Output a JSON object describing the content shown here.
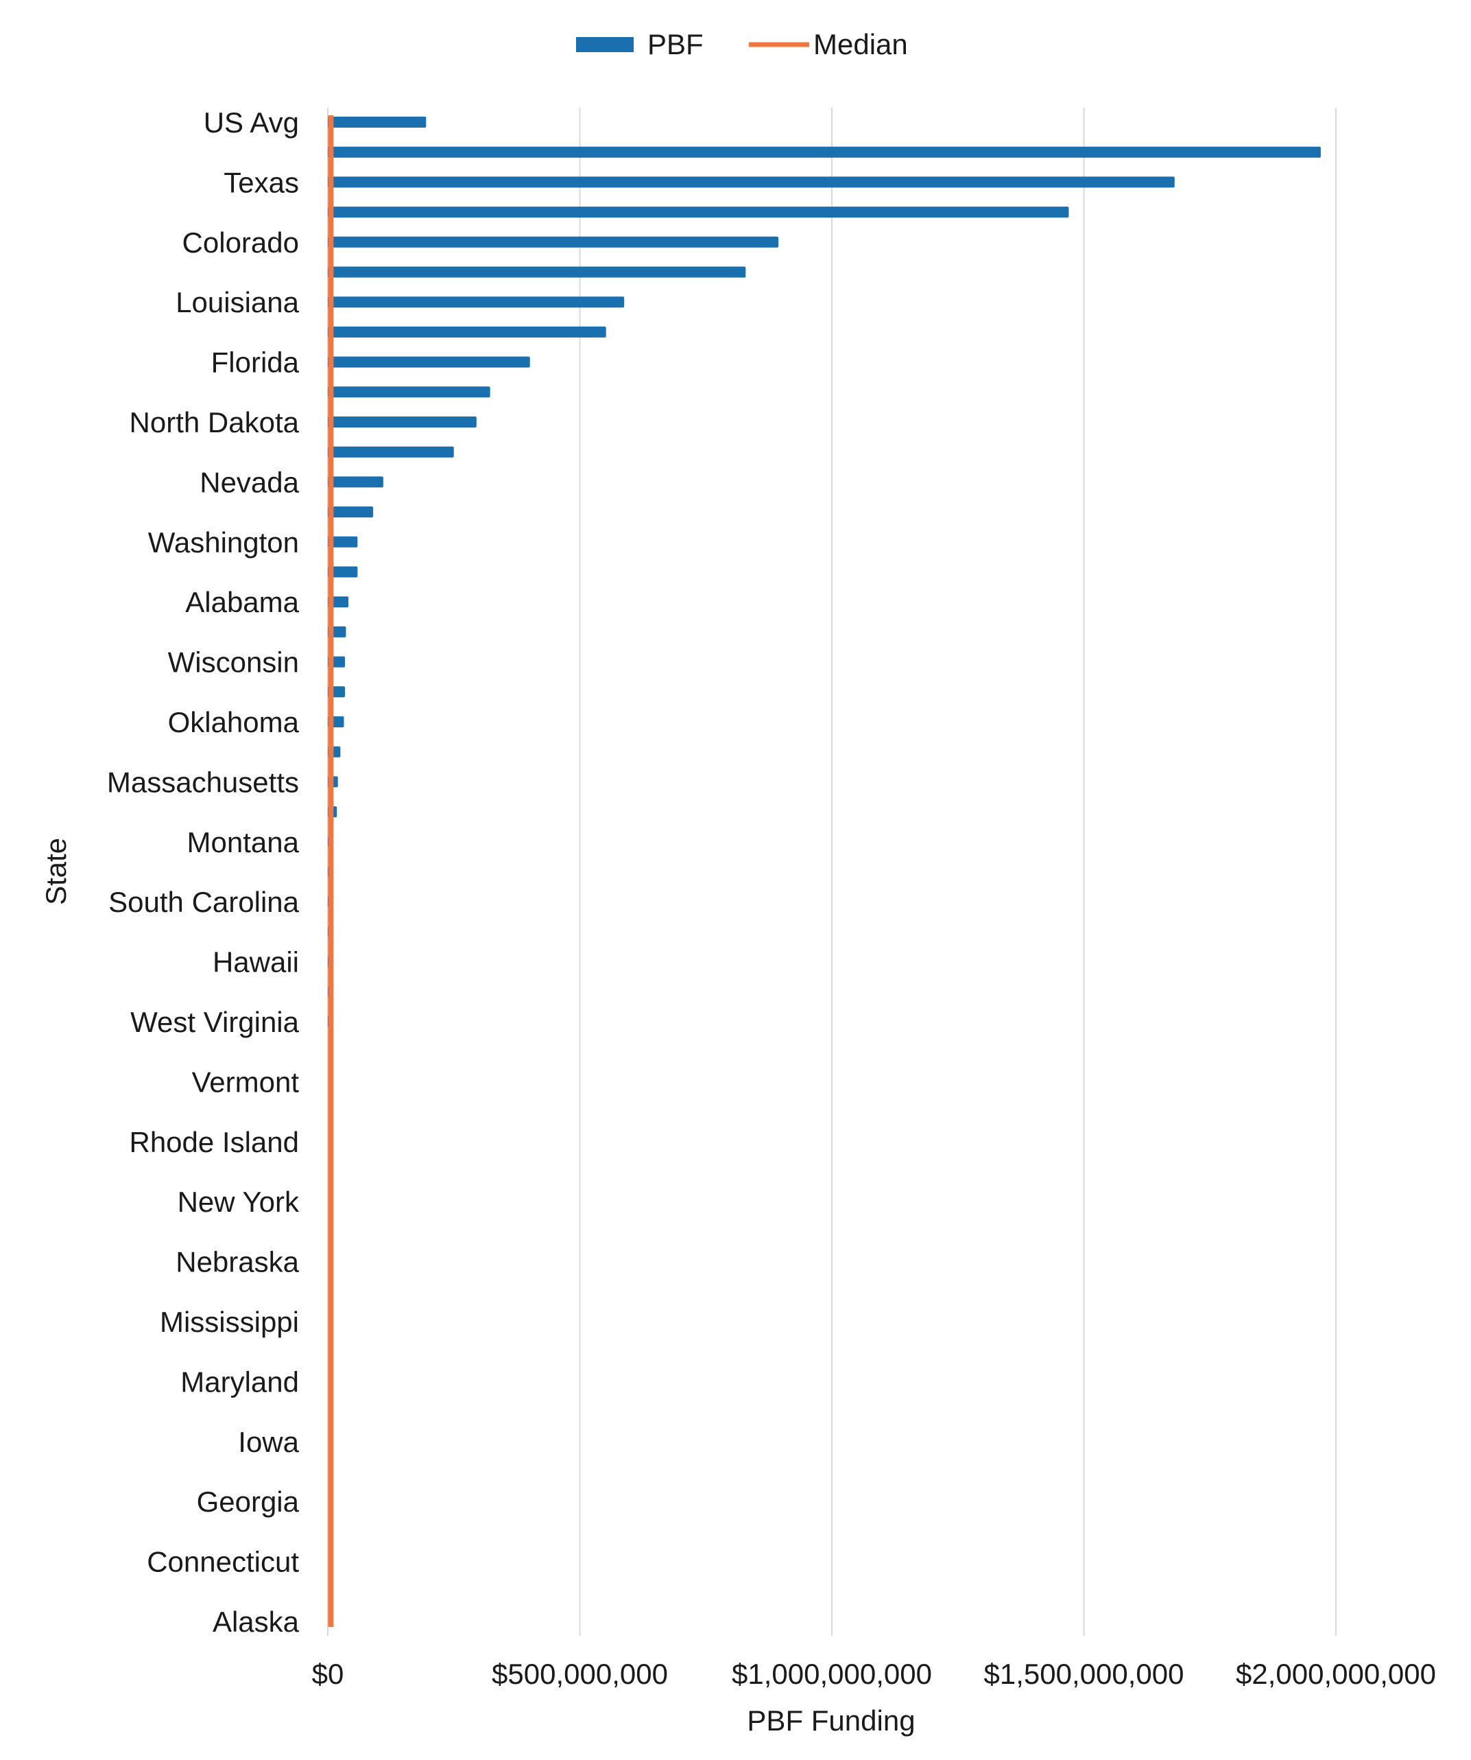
{
  "chart_data": {
    "type": "bar",
    "orientation": "horizontal",
    "title": "",
    "xlabel": "PBF Funding",
    "ylabel": "State",
    "xlim": [
      0,
      2000000000
    ],
    "x_ticks": [
      0,
      500000000,
      1000000000,
      1500000000,
      2000000000
    ],
    "x_tick_labels": [
      "$0",
      "$500,000,000",
      "$1,000,000,000",
      "$1,500,000,000",
      "$2,000,000,000"
    ],
    "grid": "vertical",
    "legend_placement": "top",
    "categories": [
      "US Avg",
      "",
      "Texas",
      "",
      "Colorado",
      "",
      "Louisiana",
      "",
      "Florida",
      "",
      "North Dakota",
      "",
      "Nevada",
      "",
      "Washington",
      "",
      "Alabama",
      "",
      "Wisconsin",
      "",
      "Oklahoma",
      "",
      "Massachusetts",
      "",
      "Montana",
      "",
      "South Carolina",
      "",
      "Hawaii",
      "",
      "West Virginia",
      "",
      "Vermont",
      "",
      "Rhode Island",
      "",
      "New York",
      "",
      "Nebraska",
      "",
      "Mississippi",
      "",
      "Maryland",
      "",
      "Iowa",
      "",
      "Georgia",
      "",
      "Connecticut",
      "",
      "Alaska"
    ],
    "series": [
      {
        "name": "PBF",
        "type": "bar",
        "color": "#1a6faf",
        "values": [
          195000000,
          1970000000,
          1680000000,
          1470000000,
          894000000,
          829000000,
          588000000,
          552000000,
          401000000,
          322000000,
          295000000,
          250000000,
          110000000,
          90000000,
          59000000,
          59000000,
          41000000,
          36000000,
          34000000,
          34000000,
          32000000,
          25000000,
          20000000,
          18000000,
          5000000,
          5000000,
          4000000,
          4000000,
          3000000,
          2000000,
          500000,
          0,
          0,
          0,
          0,
          0,
          0,
          0,
          0,
          0,
          0,
          0,
          0,
          0,
          0,
          0,
          0,
          0,
          0,
          0,
          0
        ]
      },
      {
        "name": "Median",
        "type": "line",
        "color": "#f07840",
        "value": 6000000
      }
    ]
  }
}
